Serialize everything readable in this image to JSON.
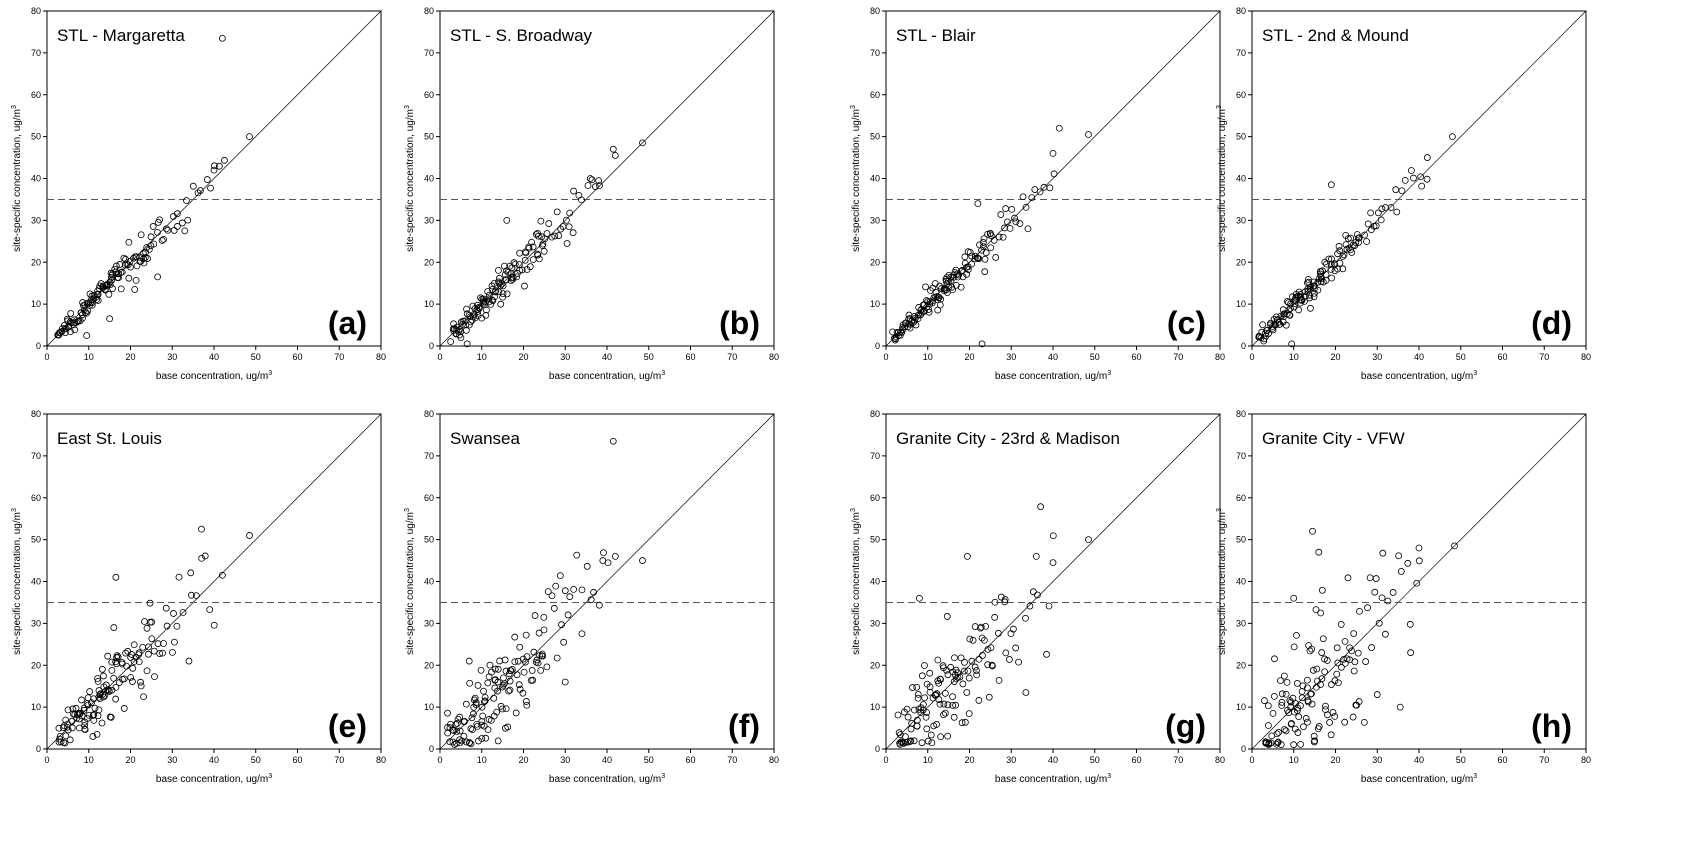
{
  "chart_data": [
    {
      "type": "scatter",
      "title": "STL - Margaretta",
      "panel_label": "(a)",
      "xlabel": "base concentration, ug/m",
      "ylabel": "site-specific concentration, ug/m",
      "unit_sup": "3",
      "xlim": [
        0,
        80
      ],
      "ylim": [
        0,
        80
      ],
      "xticks": [
        0,
        10,
        20,
        30,
        40,
        50,
        60,
        70,
        80
      ],
      "yticks": [
        0,
        10,
        20,
        30,
        40,
        50,
        60,
        70,
        80
      ],
      "reference_line": {
        "type": "1:1"
      },
      "threshold": 35,
      "spread": 1.2,
      "scatter_x": [
        3,
        4,
        5,
        6,
        7,
        8,
        9,
        10,
        11,
        12,
        13,
        14,
        15,
        16,
        17,
        18,
        19,
        20,
        21,
        22,
        23,
        24,
        25,
        26,
        27,
        28,
        29,
        30,
        31,
        32,
        33,
        34,
        35,
        36,
        37,
        38,
        39,
        40,
        41,
        42
      ],
      "outliers": [
        [
          42,
          73.5
        ],
        [
          48.5,
          50
        ],
        [
          26.5,
          16.5
        ],
        [
          9.5,
          2.5
        ],
        [
          21,
          13.5
        ],
        [
          15,
          6.5
        ],
        [
          40,
          42
        ],
        [
          33,
          27.5
        ]
      ]
    },
    {
      "type": "scatter",
      "title": "STL - S. Broadway",
      "panel_label": "(b)",
      "xlabel": "base concentration, ug/m",
      "ylabel": "site-specific concentration, ug/m",
      "unit_sup": "3",
      "xlim": [
        0,
        80
      ],
      "ylim": [
        0,
        80
      ],
      "xticks": [
        0,
        10,
        20,
        30,
        40,
        50,
        60,
        70,
        80
      ],
      "yticks": [
        0,
        10,
        20,
        30,
        40,
        50,
        60,
        70,
        80
      ],
      "reference_line": {
        "type": "1:1"
      },
      "threshold": 35,
      "spread": 1.6,
      "scatter_x": [
        3,
        4,
        5,
        6,
        7,
        8,
        9,
        10,
        11,
        12,
        13,
        14,
        15,
        16,
        17,
        18,
        19,
        20,
        21,
        22,
        23,
        24,
        25,
        26,
        27,
        28,
        29,
        30,
        31,
        32,
        33,
        34,
        35,
        36,
        37,
        38
      ],
      "outliers": [
        [
          48.5,
          48.5
        ],
        [
          41.5,
          47
        ],
        [
          42,
          45.5
        ],
        [
          36,
          40
        ],
        [
          38,
          39.5
        ],
        [
          5,
          2
        ],
        [
          6.5,
          0.5
        ],
        [
          16,
          30
        ],
        [
          32,
          37
        ]
      ]
    },
    {
      "type": "scatter",
      "title": "STL - Blair",
      "panel_label": "(c)",
      "xlabel": "base concentration, ug/m",
      "ylabel": "site-specific concentration, ug/m",
      "unit_sup": "3",
      "xlim": [
        0,
        80
      ],
      "ylim": [
        0,
        80
      ],
      "xticks": [
        0,
        10,
        20,
        30,
        40,
        50,
        60,
        70,
        80
      ],
      "yticks": [
        0,
        10,
        20,
        30,
        40,
        50,
        60,
        70,
        80
      ],
      "reference_line": {
        "type": "1:1"
      },
      "threshold": 35,
      "spread": 1.3,
      "scatter_x": [
        2,
        3,
        4,
        5,
        6,
        7,
        8,
        9,
        10,
        11,
        12,
        13,
        14,
        15,
        16,
        17,
        18,
        19,
        20,
        21,
        22,
        23,
        24,
        25,
        26,
        27,
        28,
        29,
        30,
        31,
        32,
        33,
        34,
        35,
        36,
        37,
        38,
        39,
        40
      ],
      "outliers": [
        [
          41.5,
          52
        ],
        [
          48.5,
          50.5
        ],
        [
          40,
          46
        ],
        [
          22,
          34
        ],
        [
          23,
          0.5
        ],
        [
          34,
          28
        ]
      ]
    },
    {
      "type": "scatter",
      "title": "STL - 2nd & Mound",
      "panel_label": "(d)",
      "xlabel": "base concentration, ug/m",
      "ylabel": "site-specific concentration, ug/m",
      "unit_sup": "3",
      "xlim": [
        0,
        80
      ],
      "ylim": [
        0,
        80
      ],
      "xticks": [
        0,
        10,
        20,
        30,
        40,
        50,
        60,
        70,
        80
      ],
      "yticks": [
        0,
        10,
        20,
        30,
        40,
        50,
        60,
        70,
        80
      ],
      "reference_line": {
        "type": "1:1"
      },
      "threshold": 35,
      "spread": 1.3,
      "scatter_x": [
        2,
        3,
        4,
        5,
        6,
        7,
        8,
        9,
        10,
        11,
        12,
        13,
        14,
        15,
        16,
        17,
        18,
        19,
        20,
        21,
        22,
        23,
        24,
        25,
        26,
        27,
        28,
        29,
        30,
        31,
        32,
        33,
        34,
        35,
        36,
        37,
        38,
        39,
        40,
        41,
        42
      ],
      "outliers": [
        [
          48,
          50
        ],
        [
          19,
          38.5
        ],
        [
          42,
          45
        ],
        [
          9.5,
          0.5
        ],
        [
          14,
          9
        ]
      ]
    },
    {
      "type": "scatter",
      "title": "East St. Louis",
      "panel_label": "(e)",
      "xlabel": "base concentration, ug/m",
      "ylabel": "site-specific concentration, ug/m",
      "unit_sup": "3",
      "xlim": [
        0,
        80
      ],
      "ylim": [
        0,
        80
      ],
      "xticks": [
        0,
        10,
        20,
        30,
        40,
        50,
        60,
        70,
        80
      ],
      "yticks": [
        0,
        10,
        20,
        30,
        40,
        50,
        60,
        70,
        80
      ],
      "reference_line": {
        "type": "1:1"
      },
      "threshold": 35,
      "spread": 3.4,
      "scatter_x": [
        3,
        4,
        5,
        6,
        7,
        8,
        9,
        10,
        11,
        12,
        13,
        14,
        15,
        16,
        17,
        18,
        19,
        20,
        21,
        22,
        23,
        24,
        25,
        26,
        27,
        28,
        29,
        30,
        31,
        32,
        33,
        34,
        35,
        36,
        37,
        38,
        39,
        40
      ],
      "outliers": [
        [
          37,
          52.5
        ],
        [
          48.5,
          51
        ],
        [
          16.5,
          41
        ],
        [
          42,
          41.5
        ],
        [
          34,
          21
        ],
        [
          11,
          3
        ],
        [
          12,
          3.5
        ],
        [
          16,
          29
        ]
      ]
    },
    {
      "type": "scatter",
      "title": "Swansea",
      "panel_label": "(f)",
      "xlabel": "base concentration, ug/m",
      "ylabel": "site-specific concentration, ug/m",
      "unit_sup": "3",
      "xlim": [
        0,
        80
      ],
      "ylim": [
        0,
        80
      ],
      "xticks": [
        0,
        10,
        20,
        30,
        40,
        50,
        60,
        70,
        80
      ],
      "yticks": [
        0,
        10,
        20,
        30,
        40,
        50,
        60,
        70,
        80
      ],
      "reference_line": {
        "type": "1:1"
      },
      "threshold": 35,
      "spread": 4.0,
      "scatter_x": [
        2,
        3,
        4,
        5,
        6,
        7,
        8,
        9,
        10,
        11,
        12,
        13,
        14,
        15,
        16,
        17,
        18,
        19,
        20,
        21,
        22,
        23,
        24,
        25,
        26,
        27,
        28,
        29,
        30,
        31,
        32,
        33,
        34,
        35,
        36,
        37,
        38,
        39,
        40
      ],
      "outliers": [
        [
          41.5,
          73.5
        ],
        [
          42,
          46
        ],
        [
          48.5,
          45
        ],
        [
          39,
          45
        ],
        [
          30,
          16
        ],
        [
          10,
          2.5
        ],
        [
          7,
          21
        ],
        [
          34,
          38
        ]
      ]
    },
    {
      "type": "scatter",
      "title": "Granite City - 23rd & Madison",
      "panel_label": "(g)",
      "xlabel": "base concentration, ug/m",
      "ylabel": "site-specific concentration, ug/m",
      "unit_sup": "3",
      "xlim": [
        0,
        80
      ],
      "ylim": [
        0,
        80
      ],
      "xticks": [
        0,
        10,
        20,
        30,
        40,
        50,
        60,
        70,
        80
      ],
      "yticks": [
        0,
        10,
        20,
        30,
        40,
        50,
        60,
        70,
        80
      ],
      "reference_line": {
        "type": "1:1"
      },
      "threshold": 35,
      "spread": 5.5,
      "scatter_x": [
        3,
        4,
        5,
        6,
        7,
        8,
        9,
        10,
        11,
        12,
        13,
        14,
        15,
        16,
        17,
        18,
        19,
        20,
        21,
        22,
        23,
        24,
        25,
        26,
        27,
        28,
        29,
        30,
        31,
        32,
        33,
        34,
        35,
        36,
        37,
        38,
        39,
        40
      ],
      "outliers": [
        [
          48.5,
          50
        ],
        [
          33.5,
          13.5
        ],
        [
          19.5,
          46
        ],
        [
          40,
          44.5
        ],
        [
          8,
          36
        ],
        [
          36,
          46
        ]
      ]
    },
    {
      "type": "scatter",
      "title": "Granite City - VFW",
      "panel_label": "(h)",
      "xlabel": "base concentration, ug/m",
      "ylabel": "site-specific concentration, ug/m",
      "unit_sup": "3",
      "xlim": [
        0,
        80
      ],
      "ylim": [
        0,
        80
      ],
      "xticks": [
        0,
        10,
        20,
        30,
        40,
        50,
        60,
        70,
        80
      ],
      "yticks": [
        0,
        10,
        20,
        30,
        40,
        50,
        60,
        70,
        80
      ],
      "reference_line": {
        "type": "1:1"
      },
      "threshold": 35,
      "spread": 7.5,
      "scatter_x": [
        3,
        4,
        5,
        6,
        7,
        8,
        9,
        10,
        11,
        12,
        13,
        14,
        15,
        16,
        17,
        18,
        19,
        20,
        21,
        22,
        23,
        24,
        25,
        26,
        27,
        28,
        29,
        30,
        31,
        32,
        33,
        34,
        35,
        36,
        37,
        38,
        39,
        40
      ],
      "outliers": [
        [
          48.5,
          48.5
        ],
        [
          14.5,
          52
        ],
        [
          40,
          48
        ],
        [
          35.5,
          10
        ],
        [
          38,
          23
        ],
        [
          30,
          13
        ],
        [
          10,
          36
        ],
        [
          16,
          47
        ]
      ]
    }
  ]
}
